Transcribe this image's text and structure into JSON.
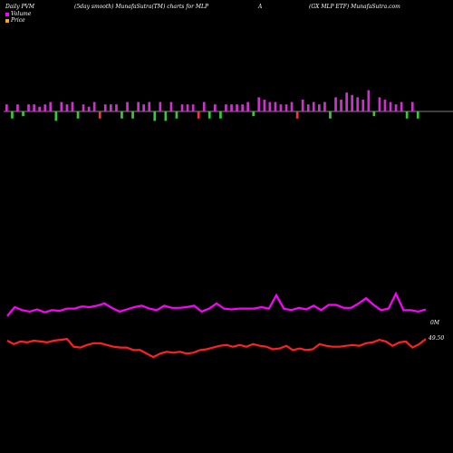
{
  "header": {
    "left": "Daily PVM",
    "mid": "(5day smooth) MunafaSutra(TM) charts for MLP",
    "a": "A",
    "right": "(GX  MLP ETF) MunafaSutra.com"
  },
  "legend": {
    "volume": {
      "label": "Volume",
      "color": "#ff00ff"
    },
    "price": {
      "label": "Price",
      "color": "#ffa500"
    }
  },
  "chart_data": {
    "type": "bar+line",
    "volume_bars": {
      "up_color": "#cc33cc",
      "down_color": "#33cc33",
      "neg_color": "#ff3333",
      "values": [
        3,
        -3,
        3,
        -2,
        3,
        3,
        2,
        3,
        4,
        -4,
        4,
        3,
        4,
        -3,
        3,
        2,
        4,
        -3,
        3,
        3,
        3,
        -3,
        4,
        -3,
        4,
        3,
        4,
        -4,
        4,
        -4,
        4,
        -3,
        3,
        3,
        3,
        -3,
        4,
        -3,
        3,
        -3,
        3,
        3,
        3,
        3,
        4,
        -2,
        6,
        5,
        4,
        4,
        3,
        3,
        4,
        -3,
        5,
        3,
        4,
        3,
        4,
        -3,
        6,
        5,
        8,
        7,
        6,
        5,
        9,
        -2,
        6,
        5,
        4,
        3,
        4,
        -3,
        4,
        -3
      ]
    },
    "volume_line": {
      "color": "#ff00ff",
      "values": [
        38,
        50,
        46,
        44,
        47,
        43,
        46,
        45,
        48,
        48,
        51,
        50,
        52,
        55,
        49,
        44,
        47,
        50,
        52,
        48,
        46,
        52,
        49,
        49,
        50,
        52,
        44,
        48,
        55,
        48,
        47,
        48,
        48,
        48,
        50,
        48,
        66,
        48,
        46,
        49,
        47,
        52,
        46,
        53,
        53,
        49,
        49,
        55,
        62,
        53,
        46,
        48,
        68,
        46,
        46,
        44,
        47
      ]
    },
    "price_line": {
      "color": "#ff2020",
      "values": [
        49.5,
        49.1,
        49.4,
        49.3,
        49.5,
        49.4,
        49.3,
        49.5,
        49.6,
        49.7,
        48.8,
        48.7,
        49.0,
        49.2,
        49.2,
        49.0,
        48.8,
        48.7,
        48.7,
        48.4,
        48.4,
        48.0,
        47.6,
        48.0,
        48.2,
        48.1,
        48.2,
        48.0,
        48.1,
        48.4,
        48.5,
        48.7,
        48.9,
        49.0,
        48.8,
        49.0,
        48.8,
        49.1,
        48.9,
        48.8,
        48.5,
        48.6,
        48.9,
        48.4,
        48.6,
        48.4,
        48.5,
        49.1,
        48.9,
        48.8,
        48.8,
        48.9,
        49.0,
        48.9,
        49.2,
        49.3,
        49.6,
        49.4,
        48.9,
        49.3,
        49.4,
        48.7,
        49.1,
        49.7
      ]
    },
    "labels": {
      "volume_value": "0M",
      "price_value": "49.50"
    }
  }
}
